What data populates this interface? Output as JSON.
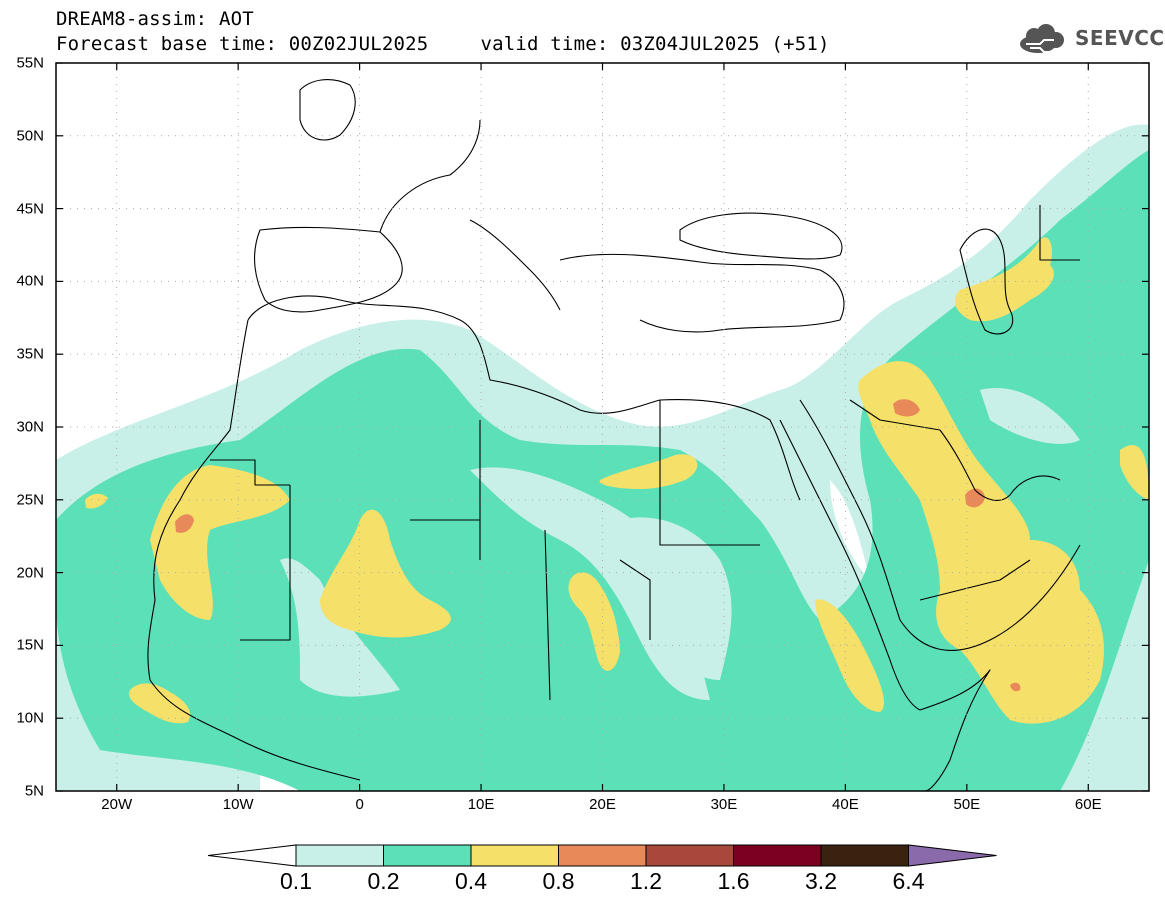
{
  "header": {
    "title": "DREAM8-assim: AOT",
    "base_time": "Forecast base time: 00Z02JUL2025",
    "valid_time": "valid time: 03Z04JUL2025 (+51)"
  },
  "logo": {
    "text": "SEEVCCC",
    "icon": "cloud-icon"
  },
  "map": {
    "lat_labels": [
      "55N",
      "50N",
      "45N",
      "40N",
      "35N",
      "30N",
      "25N",
      "20N",
      "15N",
      "10N",
      "5N"
    ],
    "lon_labels": [
      "20W",
      "10W",
      "0",
      "10E",
      "20E",
      "30E",
      "40E",
      "50E",
      "60E"
    ],
    "lat_range": [
      5,
      55
    ],
    "lon_range": [
      -25,
      65
    ]
  },
  "colorbar": {
    "labels": [
      "0.1",
      "0.2",
      "0.4",
      "0.8",
      "1.2",
      "1.6",
      "3.2",
      "6.4"
    ],
    "colors": [
      "#ffffff",
      "#c8f0e8",
      "#5ce0b8",
      "#f5e06a",
      "#e8895a",
      "#a8483a",
      "#7a0020",
      "#3a2210",
      "#8a6aaa"
    ]
  },
  "chart_data": {
    "type": "heatmap",
    "title": "DREAM8-assim: AOT",
    "variable": "AOT",
    "levels": [
      0.1,
      0.2,
      0.4,
      0.8,
      1.2,
      1.6,
      3.2,
      6.4
    ],
    "xlim": [
      -25,
      65
    ],
    "ylim": [
      5,
      55
    ]
  }
}
